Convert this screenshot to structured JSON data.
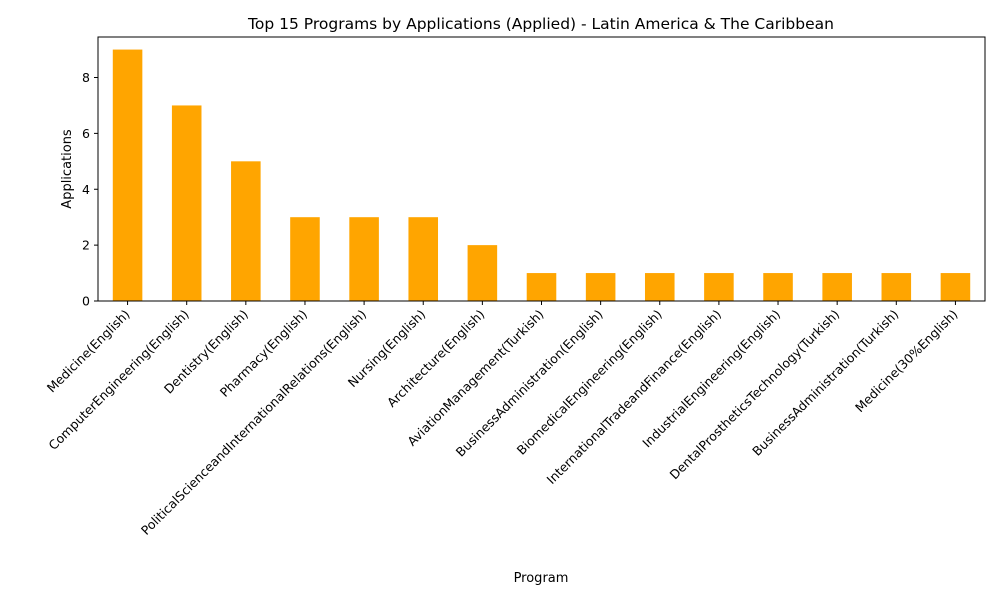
{
  "chart_data": {
    "type": "bar",
    "title": "Top 15 Programs by Applications (Applied) - Latin America & The Caribbean",
    "xlabel": "Program",
    "ylabel": "Applications",
    "ylim": [
      0,
      9.45
    ],
    "yticks": [
      0,
      2,
      4,
      6,
      8
    ],
    "grid": false,
    "legend": "none",
    "bar_color": "#FFA500",
    "categories": [
      "Medicine(English)",
      "ComputerEngineering(English)",
      "Dentistry(English)",
      "Pharmacy(English)",
      "PoliticalScienceandInternationalRelations(English)",
      "Nursing(English)",
      "Architecture(English)",
      "AviationManagement(Turkish)",
      "BusinessAdministration(English)",
      "BiomedicalEngineering(English)",
      "InternationalTradeandFinance(English)",
      "IndustrialEngineering(English)",
      "DentalProstheticsTechnology(Turkish)",
      "BusinessAdministration(Turkish)",
      "Medicine(30%English)"
    ],
    "values": [
      9,
      7,
      5,
      3,
      3,
      3,
      2,
      1,
      1,
      1,
      1,
      1,
      1,
      1,
      1
    ]
  }
}
